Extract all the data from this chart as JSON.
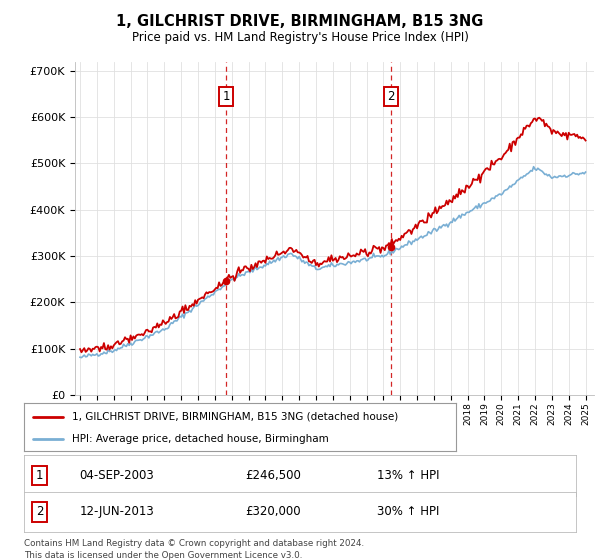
{
  "title": "1, GILCHRIST DRIVE, BIRMINGHAM, B15 3NG",
  "subtitle": "Price paid vs. HM Land Registry's House Price Index (HPI)",
  "ylim": [
    0,
    720000
  ],
  "yticks": [
    0,
    100000,
    200000,
    300000,
    400000,
    500000,
    600000,
    700000
  ],
  "ytick_labels": [
    "£0",
    "£100K",
    "£200K",
    "£300K",
    "£400K",
    "£500K",
    "£600K",
    "£700K"
  ],
  "hpi_color": "#7aafd4",
  "price_color": "#cc0000",
  "marker1_year": 2003.67,
  "marker1_price": 246500,
  "marker2_year": 2013.44,
  "marker2_price": 320000,
  "marker1_date": "04-SEP-2003",
  "marker1_amt": "£246,500",
  "marker1_hpi": "13% ↑ HPI",
  "marker2_date": "12-JUN-2013",
  "marker2_amt": "£320,000",
  "marker2_hpi": "30% ↑ HPI",
  "legend_line1": "1, GILCHRIST DRIVE, BIRMINGHAM, B15 3NG (detached house)",
  "legend_line2": "HPI: Average price, detached house, Birmingham",
  "footer": "Contains HM Land Registry data © Crown copyright and database right 2024.\nThis data is licensed under the Open Government Licence v3.0.",
  "background_color": "#ffffff",
  "grid_color": "#e0e0e0"
}
